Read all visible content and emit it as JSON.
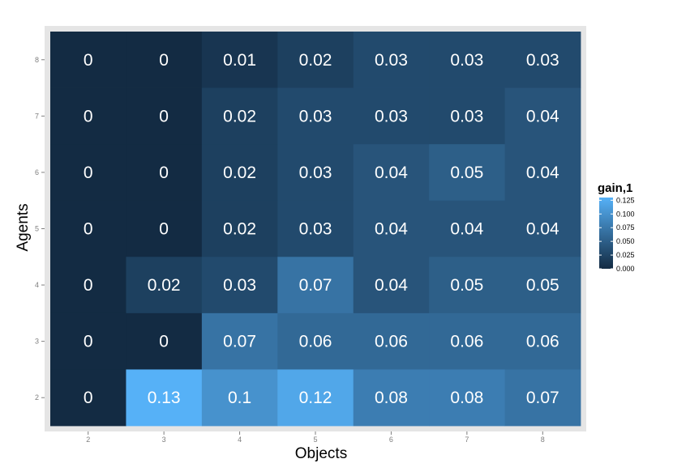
{
  "chart_data": {
    "type": "heatmap",
    "xlabel": "Objects",
    "ylabel": "Agents",
    "x": [
      2,
      3,
      4,
      5,
      6,
      7,
      8
    ],
    "y": [
      2,
      3,
      4,
      5,
      6,
      7,
      8
    ],
    "values": [
      {
        "y": 8,
        "row": [
          0,
          0,
          0.01,
          0.02,
          0.03,
          0.03,
          0.03
        ]
      },
      {
        "y": 7,
        "row": [
          0,
          0,
          0.02,
          0.03,
          0.03,
          0.03,
          0.04
        ]
      },
      {
        "y": 6,
        "row": [
          0,
          0,
          0.02,
          0.03,
          0.04,
          0.05,
          0.04
        ]
      },
      {
        "y": 5,
        "row": [
          0,
          0,
          0.02,
          0.03,
          0.04,
          0.04,
          0.04
        ]
      },
      {
        "y": 4,
        "row": [
          0,
          0.02,
          0.03,
          0.07,
          0.04,
          0.05,
          0.05
        ]
      },
      {
        "y": 3,
        "row": [
          0,
          0,
          0.07,
          0.06,
          0.06,
          0.06,
          0.06
        ]
      },
      {
        "y": 2,
        "row": [
          0,
          0.13,
          0.1,
          0.12,
          0.08,
          0.08,
          0.07
        ]
      }
    ],
    "legend": {
      "title": "gain,1",
      "placement": "right",
      "ticks": [
        "0.125",
        "0.100",
        "0.075",
        "0.050",
        "0.025",
        "0.000"
      ],
      "tick_values": [
        0.125,
        0.1,
        0.075,
        0.05,
        0.025,
        0.0
      ],
      "range": [
        0,
        0.13
      ]
    },
    "colors": {
      "low": "#132B43",
      "high": "#56B1F7",
      "panel": "#e5e5e5",
      "label": "#ffffff"
    },
    "grid": true
  }
}
